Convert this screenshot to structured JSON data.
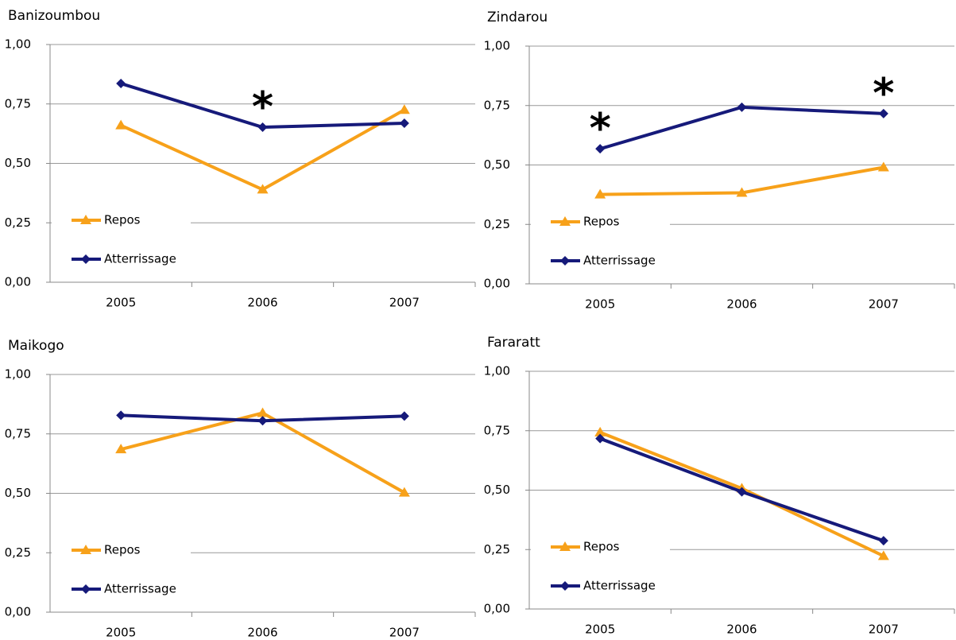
{
  "chart_data": [
    {
      "type": "line",
      "title": "Banizoumbou",
      "categories": [
        "2005",
        "2006",
        "2007"
      ],
      "series": [
        {
          "name": "Repos",
          "color": "#f7a11a",
          "marker": "triangle",
          "values": [
            0.66,
            0.39,
            0.725
          ]
        },
        {
          "name": "Atterrissage",
          "color": "#161a7a",
          "marker": "diamond",
          "values": [
            0.836,
            0.652,
            0.669
          ]
        }
      ],
      "ylim": [
        0,
        1
      ],
      "yticks": [
        {
          "value": 0,
          "label": "0,00"
        },
        {
          "value": 0.25,
          "label": "0,25"
        },
        {
          "value": 0.5,
          "label": "0,50"
        },
        {
          "value": 0.75,
          "label": "0,75"
        },
        {
          "value": 1,
          "label": "1,00"
        }
      ],
      "grid": true,
      "legend": "lower-left",
      "annotations": [
        {
          "text": "*",
          "x": "2006"
        }
      ]
    },
    {
      "type": "line",
      "title": "Zindarou",
      "categories": [
        "2005",
        "2006",
        "2007"
      ],
      "series": [
        {
          "name": "Repos",
          "color": "#f7a11a",
          "marker": "triangle",
          "values": [
            0.376,
            0.383,
            0.49
          ]
        },
        {
          "name": "Atterrissage",
          "color": "#161a7a",
          "marker": "diamond",
          "values": [
            0.568,
            0.743,
            0.716
          ]
        }
      ],
      "ylim": [
        0,
        1
      ],
      "yticks": [
        {
          "value": 0,
          "label": "0,00"
        },
        {
          "value": 0.25,
          "label": "0,25"
        },
        {
          "value": 0.5,
          "label": "0,50"
        },
        {
          "value": 0.75,
          "label": "0,75"
        },
        {
          "value": 1,
          "label": "1,00"
        }
      ],
      "grid": true,
      "legend": "lower-left",
      "annotations": [
        {
          "text": "*",
          "x": "2005"
        },
        {
          "text": "*",
          "x": "2007"
        }
      ]
    },
    {
      "type": "line",
      "title": "Maikogo",
      "categories": [
        "2005",
        "2006",
        "2007"
      ],
      "series": [
        {
          "name": "Repos",
          "color": "#f7a11a",
          "marker": "triangle",
          "values": [
            0.685,
            0.838,
            0.503
          ]
        },
        {
          "name": "Atterrissage",
          "color": "#161a7a",
          "marker": "diamond",
          "values": [
            0.828,
            0.805,
            0.825
          ]
        }
      ],
      "ylim": [
        0,
        1
      ],
      "yticks": [
        {
          "value": 0,
          "label": "0,00"
        },
        {
          "value": 0.25,
          "label": "0,25"
        },
        {
          "value": 0.5,
          "label": "0,50"
        },
        {
          "value": 0.75,
          "label": "0,75"
        },
        {
          "value": 1,
          "label": "1,00"
        }
      ],
      "grid": true,
      "legend": "lower-left"
    },
    {
      "type": "line",
      "title": "Fararatt",
      "categories": [
        "2005",
        "2006",
        "2007"
      ],
      "series": [
        {
          "name": "Repos",
          "color": "#f7a11a",
          "marker": "triangle",
          "values": [
            0.743,
            0.507,
            0.223
          ]
        },
        {
          "name": "Atterrissage",
          "color": "#161a7a",
          "marker": "diamond",
          "values": [
            0.717,
            0.493,
            0.287
          ]
        }
      ],
      "ylim": [
        0,
        1
      ],
      "yticks": [
        {
          "value": 0,
          "label": "0,00"
        },
        {
          "value": 0.25,
          "label": "0,25"
        },
        {
          "value": 0.5,
          "label": "0,50"
        },
        {
          "value": 0.75,
          "label": "0,75"
        },
        {
          "value": 1,
          "label": "1,00"
        }
      ],
      "grid": true,
      "legend": "lower-left"
    }
  ]
}
